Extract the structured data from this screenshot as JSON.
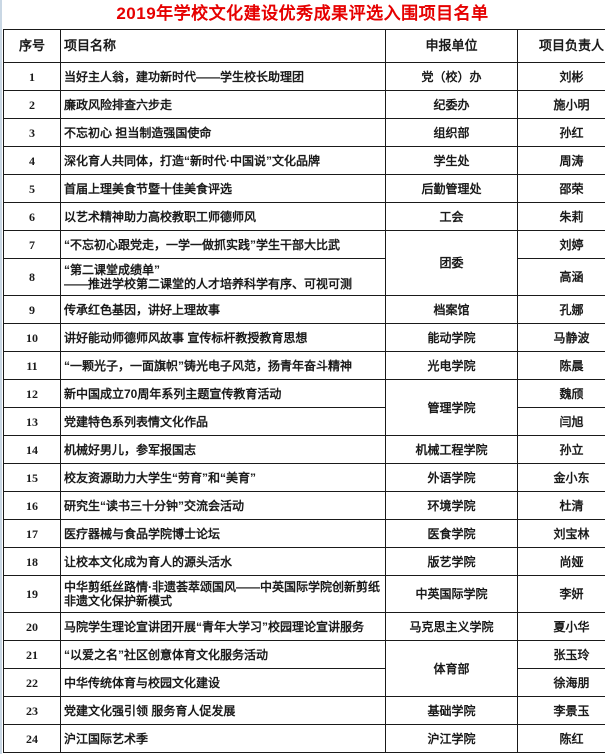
{
  "title": "2019年学校文化建设优秀成果评选入围项目名单",
  "colors": {
    "title_red": "#e60000",
    "grid": "#1a1a1a",
    "edge_strip": "#c9d7e4"
  },
  "table": {
    "headers": [
      "序号",
      "项目名称",
      "申报单位",
      "项目负责人"
    ],
    "rows": [
      {
        "no": "1",
        "project": "当好主人翁，建功新时代——学生校长助理团",
        "unit": "党（校）办",
        "unit_rowspan": 1,
        "leader": "刘彬"
      },
      {
        "no": "2",
        "project": "廉政风险排查六步走",
        "unit": "纪委办",
        "unit_rowspan": 1,
        "leader": "施小明"
      },
      {
        "no": "3",
        "project": "不忘初心 担当制造强国使命",
        "unit": "组织部",
        "unit_rowspan": 1,
        "leader": "孙红"
      },
      {
        "no": "4",
        "project": "深化育人共同体，打造“新时代·中国说”文化品牌",
        "unit": "学生处",
        "unit_rowspan": 1,
        "leader": "周涛"
      },
      {
        "no": "5",
        "project": "首届上理美食节暨十佳美食评选",
        "unit": "后勤管理处",
        "unit_rowspan": 1,
        "leader": "邵荣"
      },
      {
        "no": "6",
        "project": "以艺术精神助力高校教职工师德师风",
        "unit": "工会",
        "unit_rowspan": 1,
        "leader": "朱莉"
      },
      {
        "no": "7",
        "project": "“不忘初心跟党走，一学一做抓实践”学生干部大比武",
        "unit": "团委",
        "unit_rowspan": 2,
        "leader": "刘婷"
      },
      {
        "no": "8",
        "project": "“第二课堂成绩单”\n——推进学校第二课堂的人才培养科学有序、可视可测",
        "unit": "",
        "unit_rowspan": 0,
        "leader": "高涵"
      },
      {
        "no": "9",
        "project": "传承红色基因，讲好上理故事",
        "unit": "档案馆",
        "unit_rowspan": 1,
        "leader": "孔娜"
      },
      {
        "no": "10",
        "project": "讲好能动师德师风故事 宣传标杆教授教育思想",
        "unit": "能动学院",
        "unit_rowspan": 1,
        "leader": "马静波"
      },
      {
        "no": "11",
        "project": "“一颗光子，一面旗帜”铸光电子风范，扬青年奋斗精神",
        "unit": "光电学院",
        "unit_rowspan": 1,
        "leader": "陈晨"
      },
      {
        "no": "12",
        "project": "新中国成立70周年系列主题宣传教育活动",
        "unit": "管理学院",
        "unit_rowspan": 2,
        "leader": "魏颀"
      },
      {
        "no": "13",
        "project": "党建特色系列表情文化作品",
        "unit": "",
        "unit_rowspan": 0,
        "leader": "闫旭"
      },
      {
        "no": "14",
        "project": "机械好男儿，参军报国志",
        "unit": "机械工程学院",
        "unit_rowspan": 1,
        "leader": "孙立"
      },
      {
        "no": "15",
        "project": "校友资源助力大学生“劳育”和“美育”",
        "unit": "外语学院",
        "unit_rowspan": 1,
        "leader": "金小东"
      },
      {
        "no": "16",
        "project": "研究生“读书三十分钟”交流会活动",
        "unit": "环境学院",
        "unit_rowspan": 1,
        "leader": "杜清"
      },
      {
        "no": "17",
        "project": "医疗器械与食品学院博士论坛",
        "unit": "医食学院",
        "unit_rowspan": 1,
        "leader": "刘宝林"
      },
      {
        "no": "18",
        "project": "让校本文化成为育人的源头活水",
        "unit": "版艺学院",
        "unit_rowspan": 1,
        "leader": "尚娅"
      },
      {
        "no": "19",
        "project": "中华剪纸丝路情·非遗荟萃颂国风——中英国际学院创新剪纸非遗文化保护新模式",
        "unit": "中英国际学院",
        "unit_rowspan": 1,
        "leader": "李妍"
      },
      {
        "no": "20",
        "project": "马院学生理论宣讲团开展“青年大学习”校园理论宣讲服务",
        "unit": "马克思主义学院",
        "unit_rowspan": 1,
        "leader": "夏小华"
      },
      {
        "no": "21",
        "project": "“以爱之名”社区创意体育文化服务活动",
        "unit": "体育部",
        "unit_rowspan": 2,
        "leader": "张玉玲"
      },
      {
        "no": "22",
        "project": "中华传统体育与校园文化建设",
        "unit": "",
        "unit_rowspan": 0,
        "leader": "徐海朋"
      },
      {
        "no": "23",
        "project": "党建文化强引领 服务育人促发展",
        "unit": "基础学院",
        "unit_rowspan": 1,
        "leader": "李景玉"
      },
      {
        "no": "24",
        "project": "沪江国际艺术季",
        "unit": "沪江学院",
        "unit_rowspan": 1,
        "leader": "陈红"
      }
    ]
  }
}
